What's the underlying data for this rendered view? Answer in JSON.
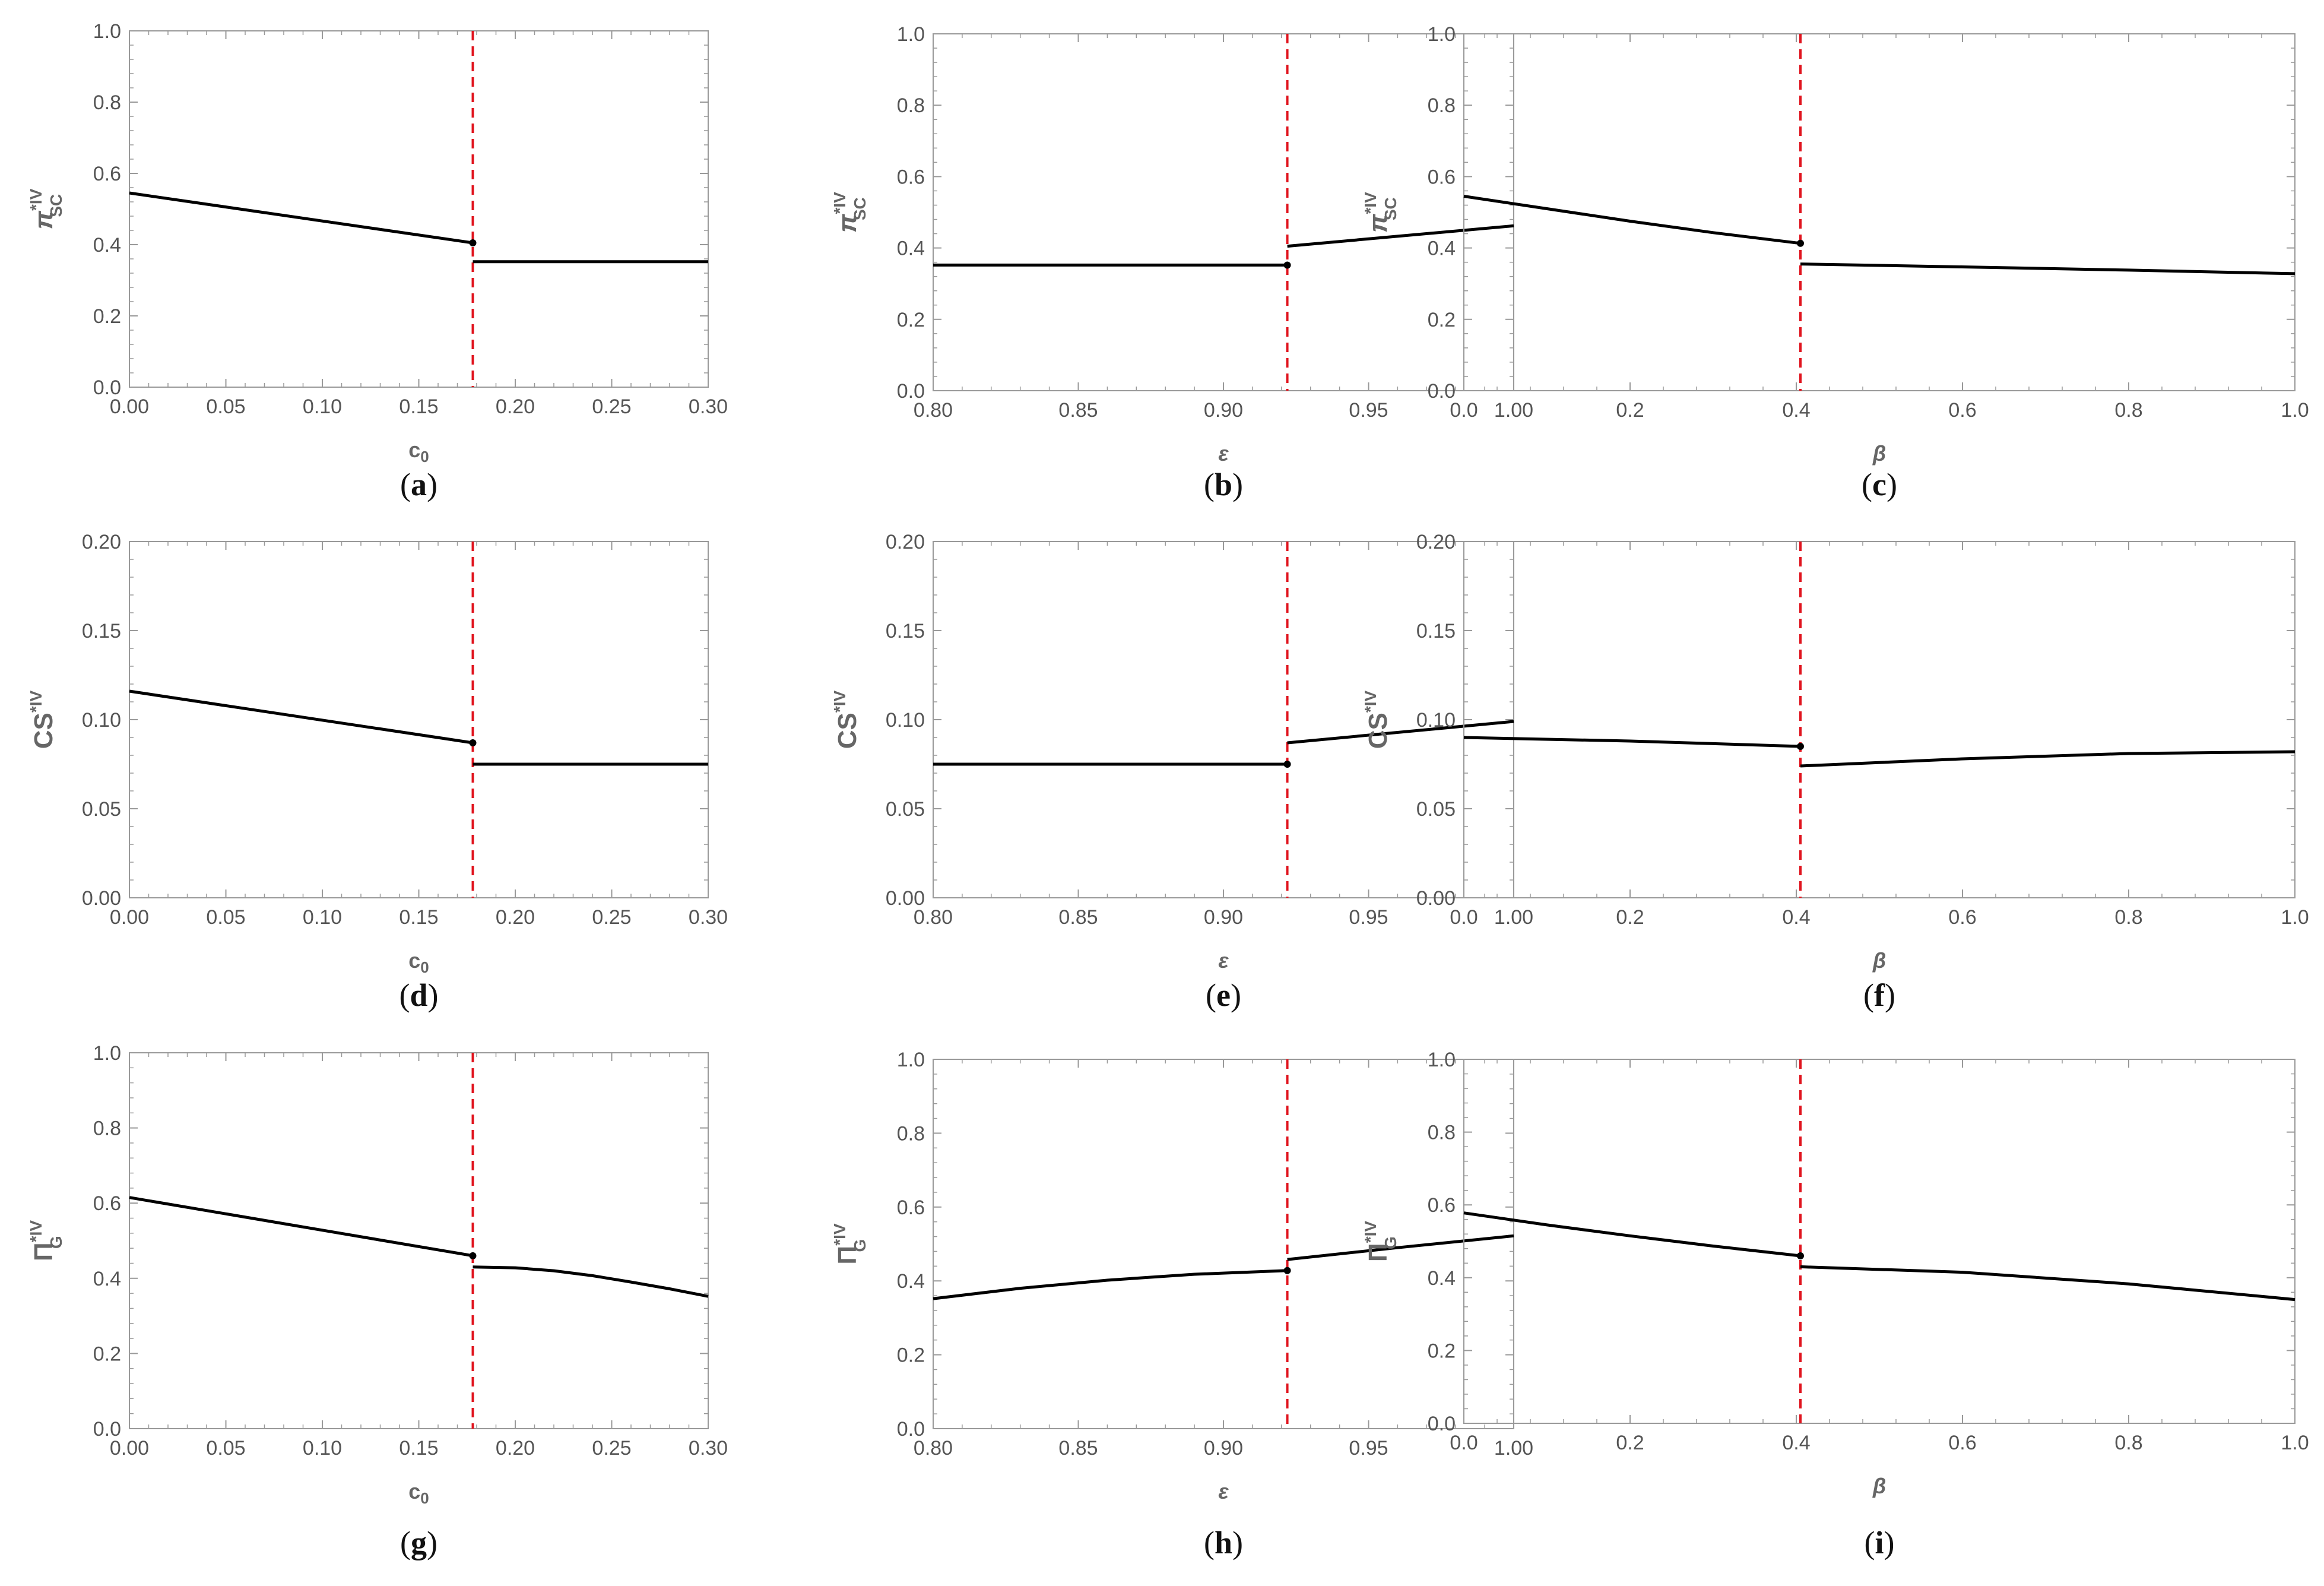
{
  "chart_data": [
    {
      "id": "a",
      "type": "line",
      "caption": "a",
      "xlabel": "c",
      "xlabel_sub": "0",
      "ylabel": "π",
      "ylabel_sup": "*IV",
      "ylabel_sub": "SC",
      "xlim": [
        0,
        0.3
      ],
      "ylim": [
        0,
        1.0
      ],
      "xticks": [
        "0.00",
        "0.05",
        "0.10",
        "0.15",
        "0.20",
        "0.25",
        "0.30"
      ],
      "yticks": [
        "0.0",
        "0.2",
        "0.4",
        "0.6",
        "0.8",
        "1.0"
      ],
      "threshold": 0.178,
      "series": [
        {
          "name": "left branch",
          "x": [
            0,
            0.178
          ],
          "y": [
            0.545,
            0.405
          ]
        },
        {
          "name": "right branch",
          "x": [
            0.178,
            0.3
          ],
          "y": [
            0.352,
            0.352
          ]
        }
      ]
    },
    {
      "id": "b",
      "type": "line",
      "caption": "b",
      "xlabel": "ε",
      "xlabel_sub": "",
      "ylabel": "π",
      "ylabel_sup": "*IV",
      "ylabel_sub": "SC",
      "xlim": [
        0.8,
        1.0
      ],
      "ylim": [
        0,
        1.0
      ],
      "xticks": [
        "0.80",
        "0.85",
        "0.90",
        "0.95",
        "1.00"
      ],
      "yticks": [
        "0.0",
        "0.2",
        "0.4",
        "0.6",
        "0.8",
        "1.0"
      ],
      "threshold": 0.922,
      "series": [
        {
          "name": "left branch",
          "x": [
            0.8,
            0.922
          ],
          "y": [
            0.352,
            0.352
          ]
        },
        {
          "name": "right branch",
          "x": [
            0.922,
            1.0
          ],
          "y": [
            0.405,
            0.462
          ]
        }
      ]
    },
    {
      "id": "c",
      "type": "line",
      "caption": "c",
      "xlabel": "β",
      "xlabel_sub": "",
      "ylabel": "π",
      "ylabel_sup": "*IV",
      "ylabel_sub": "SC",
      "xlim": [
        0,
        1.0
      ],
      "ylim": [
        0,
        1.0
      ],
      "xticks": [
        "0.0",
        "0.2",
        "0.4",
        "0.6",
        "0.8",
        "1.0"
      ],
      "yticks": [
        "0.0",
        "0.2",
        "0.4",
        "0.6",
        "0.8",
        "1.0"
      ],
      "threshold": 0.405,
      "series": [
        {
          "name": "left branch",
          "x": [
            0,
            0.1,
            0.2,
            0.3,
            0.405
          ],
          "y": [
            0.545,
            0.51,
            0.475,
            0.443,
            0.413
          ]
        },
        {
          "name": "right branch",
          "x": [
            0.405,
            0.6,
            0.8,
            1.0
          ],
          "y": [
            0.355,
            0.347,
            0.338,
            0.328
          ]
        }
      ]
    },
    {
      "id": "d",
      "type": "line",
      "caption": "d",
      "xlabel": "c",
      "xlabel_sub": "0",
      "ylabel": "CS",
      "ylabel_sup": "*IV",
      "ylabel_sub": "",
      "xlim": [
        0,
        0.3
      ],
      "ylim": [
        0,
        0.2
      ],
      "xticks": [
        "0.00",
        "0.05",
        "0.10",
        "0.15",
        "0.20",
        "0.25",
        "0.30"
      ],
      "yticks": [
        "0.00",
        "0.05",
        "0.10",
        "0.15",
        "0.20"
      ],
      "threshold": 0.178,
      "series": [
        {
          "name": "left branch",
          "x": [
            0,
            0.178
          ],
          "y": [
            0.116,
            0.087
          ]
        },
        {
          "name": "right branch",
          "x": [
            0.178,
            0.3
          ],
          "y": [
            0.075,
            0.075
          ]
        }
      ]
    },
    {
      "id": "e",
      "type": "line",
      "caption": "e",
      "xlabel": "ε",
      "xlabel_sub": "",
      "ylabel": "CS",
      "ylabel_sup": "*IV",
      "ylabel_sub": "",
      "xlim": [
        0.8,
        1.0
      ],
      "ylim": [
        0,
        0.2
      ],
      "xticks": [
        "0.80",
        "0.85",
        "0.90",
        "0.95",
        "1.00"
      ],
      "yticks": [
        "0.00",
        "0.05",
        "0.10",
        "0.15",
        "0.20"
      ],
      "threshold": 0.922,
      "series": [
        {
          "name": "left branch",
          "x": [
            0.8,
            0.922
          ],
          "y": [
            0.075,
            0.075
          ]
        },
        {
          "name": "right branch",
          "x": [
            0.922,
            1.0
          ],
          "y": [
            0.087,
            0.099
          ]
        }
      ]
    },
    {
      "id": "f",
      "type": "line",
      "caption": "f",
      "xlabel": "β",
      "xlabel_sub": "",
      "ylabel": "CS",
      "ylabel_sup": "*IV",
      "ylabel_sub": "",
      "xlim": [
        0,
        1.0
      ],
      "ylim": [
        0,
        0.2
      ],
      "xticks": [
        "0.0",
        "0.2",
        "0.4",
        "0.6",
        "0.8",
        "1.0"
      ],
      "yticks": [
        "0.00",
        "0.05",
        "0.10",
        "0.15",
        "0.20"
      ],
      "threshold": 0.405,
      "series": [
        {
          "name": "left branch",
          "x": [
            0,
            0.2,
            0.405
          ],
          "y": [
            0.09,
            0.088,
            0.085
          ]
        },
        {
          "name": "right branch",
          "x": [
            0.405,
            0.6,
            0.8,
            1.0
          ],
          "y": [
            0.074,
            0.078,
            0.081,
            0.082
          ]
        }
      ]
    },
    {
      "id": "g",
      "type": "line",
      "caption": "g",
      "xlabel": "c",
      "xlabel_sub": "0",
      "ylabel": "Π",
      "ylabel_sup": "*IV",
      "ylabel_sub": "G",
      "xlim": [
        0,
        0.3
      ],
      "ylim": [
        0,
        1.0
      ],
      "xticks": [
        "0.00",
        "0.05",
        "0.10",
        "0.15",
        "0.20",
        "0.25",
        "0.30"
      ],
      "yticks": [
        "0.0",
        "0.2",
        "0.4",
        "0.6",
        "0.8",
        "1.0"
      ],
      "threshold": 0.178,
      "series": [
        {
          "name": "left branch",
          "x": [
            0,
            0.178
          ],
          "y": [
            0.615,
            0.46
          ]
        },
        {
          "name": "right branch",
          "x": [
            0.178,
            0.2,
            0.22,
            0.24,
            0.26,
            0.28,
            0.3
          ],
          "y": [
            0.43,
            0.428,
            0.42,
            0.407,
            0.39,
            0.372,
            0.352
          ]
        }
      ]
    },
    {
      "id": "h",
      "type": "line",
      "caption": "h",
      "xlabel": "ε",
      "xlabel_sub": "",
      "ylabel": "Π",
      "ylabel_sup": "*IV",
      "ylabel_sub": "G",
      "xlim": [
        0.8,
        1.0
      ],
      "ylim": [
        0,
        1.0
      ],
      "xticks": [
        "0.80",
        "0.85",
        "0.90",
        "0.95",
        "1.00"
      ],
      "yticks": [
        "0.0",
        "0.2",
        "0.4",
        "0.6",
        "0.8",
        "1.0"
      ],
      "threshold": 0.922,
      "series": [
        {
          "name": "left branch",
          "x": [
            0.8,
            0.83,
            0.86,
            0.89,
            0.922
          ],
          "y": [
            0.352,
            0.38,
            0.402,
            0.418,
            0.428
          ]
        },
        {
          "name": "right branch",
          "x": [
            0.922,
            0.96,
            1.0
          ],
          "y": [
            0.458,
            0.49,
            0.522
          ]
        }
      ]
    },
    {
      "id": "i",
      "type": "line",
      "caption": "i",
      "xlabel": "β",
      "xlabel_sub": "",
      "ylabel": "Π",
      "ylabel_sup": "*IV",
      "ylabel_sub": "G",
      "xlim": [
        0,
        1.0
      ],
      "ylim": [
        0,
        1.0
      ],
      "xticks": [
        "0.0",
        "0.2",
        "0.4",
        "0.6",
        "0.8",
        "1.0"
      ],
      "yticks": [
        "0.0",
        "0.2",
        "0.4",
        "0.6",
        "0.8",
        "1.0"
      ],
      "threshold": 0.405,
      "series": [
        {
          "name": "left branch",
          "x": [
            0,
            0.1,
            0.2,
            0.3,
            0.405
          ],
          "y": [
            0.578,
            0.545,
            0.515,
            0.487,
            0.46
          ]
        },
        {
          "name": "right branch",
          "x": [
            0.405,
            0.6,
            0.8,
            1.0
          ],
          "y": [
            0.43,
            0.415,
            0.383,
            0.34
          ]
        }
      ]
    }
  ],
  "colors": {
    "curve": "#000000",
    "threshold": "#e0141e",
    "frame": "#999999",
    "tick_text": "#555555"
  }
}
